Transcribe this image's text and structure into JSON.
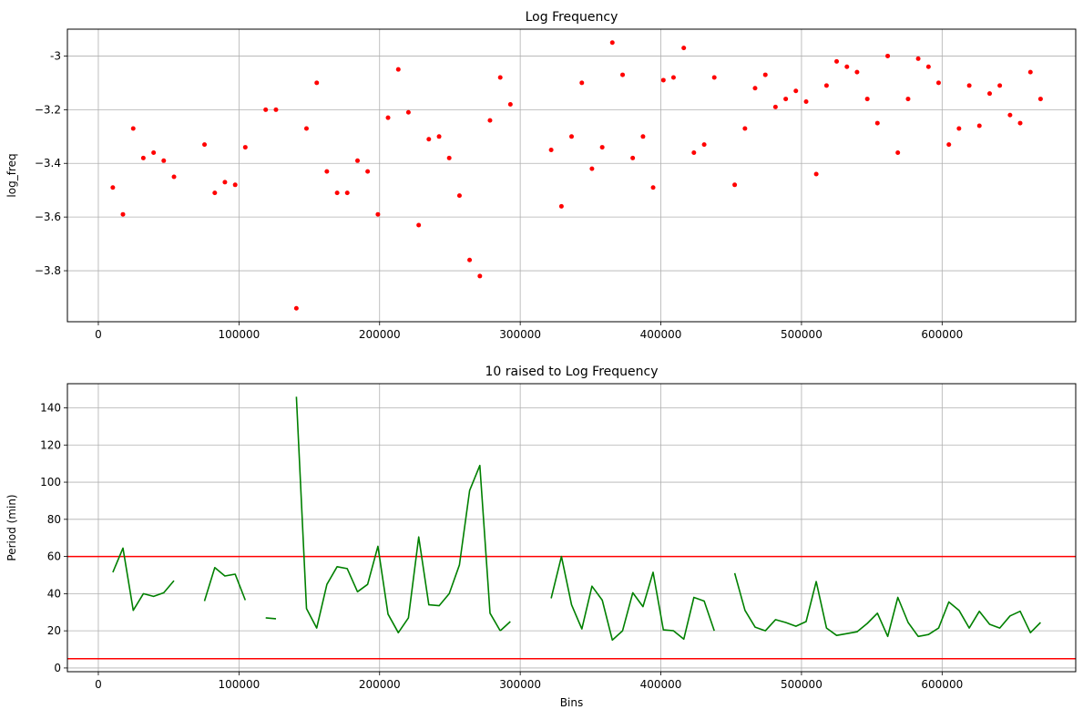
{
  "chart_data": [
    {
      "type": "scatter",
      "title": "Log Frequency",
      "xlabel": "",
      "ylabel": "log_freq",
      "xlim": [
        -22000,
        695000
      ],
      "ylim": [
        -3.99,
        -2.9
      ],
      "xticks": [
        0,
        100000,
        200000,
        300000,
        400000,
        500000,
        600000
      ],
      "yticks": [
        -3.8,
        -3.6,
        -3.4,
        -3.2,
        -3.0
      ],
      "grid": true,
      "color": "#ff0000",
      "series": [
        {
          "x": [
            10300,
            17500,
            24800,
            32000,
            39300,
            46500,
            53800,
            75500,
            82800,
            90000,
            97300,
            104500,
            119000,
            126300,
            140800,
            148000,
            155300,
            162500,
            169800,
            177000,
            184300,
            191500,
            198800,
            206000,
            213300,
            220500,
            227800,
            235000,
            242300,
            249500,
            256800,
            264000,
            271300,
            278500,
            285800,
            293000,
            322000,
            329300,
            336500,
            343800,
            351000,
            358300,
            365500,
            372800,
            380000,
            387300,
            394500,
            401800,
            409000,
            416300,
            423500,
            430800,
            438000,
            452500,
            459800,
            467000,
            474300,
            481500,
            488800,
            496000,
            503300,
            510500,
            517800,
            525000,
            532300,
            539500,
            546800,
            554000,
            561300,
            568500,
            575800,
            583000,
            590300,
            597500,
            604800,
            612000,
            619300,
            626500,
            633800,
            641000,
            648300,
            655500,
            662800,
            670000
          ],
          "y": [
            -3.49,
            -3.59,
            -3.27,
            -3.38,
            -3.36,
            -3.39,
            -3.45,
            -3.33,
            -3.51,
            -3.47,
            -3.48,
            -3.34,
            -3.2,
            -3.2,
            -3.94,
            -3.27,
            -3.1,
            -3.43,
            -3.51,
            -3.51,
            -3.39,
            -3.43,
            -3.59,
            -3.23,
            -3.05,
            -3.21,
            -3.63,
            -3.31,
            -3.3,
            -3.38,
            -3.52,
            -3.76,
            -3.82,
            -3.24,
            -3.08,
            -3.18,
            -3.35,
            -3.56,
            -3.3,
            -3.1,
            -3.42,
            -3.34,
            -2.95,
            -3.07,
            -3.38,
            -3.3,
            -3.49,
            -3.09,
            -3.08,
            -2.97,
            -3.36,
            -3.33,
            -3.08,
            -3.48,
            -3.27,
            -3.12,
            -3.07,
            -3.19,
            -3.16,
            -3.13,
            -3.17,
            -3.44,
            -3.11,
            -3.02,
            -3.04,
            -3.06,
            -3.16,
            -3.25,
            -3.0,
            -3.36,
            -3.16,
            -3.01,
            -3.04,
            -3.1,
            -3.33,
            -3.27,
            -3.11,
            -3.26,
            -3.14,
            -3.11,
            -3.22,
            -3.25,
            -3.06,
            -3.16
          ]
        }
      ]
    },
    {
      "type": "line",
      "title": "10 raised to Log Frequency",
      "xlabel": "Bins",
      "ylabel": "Period (min)",
      "xlim": [
        -22000,
        695000
      ],
      "ylim": [
        -2,
        153
      ],
      "xticks": [
        0,
        100000,
        200000,
        300000,
        400000,
        500000,
        600000
      ],
      "yticks": [
        0,
        20,
        40,
        60,
        80,
        100,
        120,
        140
      ],
      "grid": true,
      "color": "#008000",
      "hlines": [
        {
          "y": 60,
          "color": "#ff0000"
        },
        {
          "y": 5,
          "color": "#ff0000"
        }
      ],
      "segments": [
        {
          "x": [
            10300,
            17500,
            24800,
            32000,
            39300,
            46500,
            53800
          ],
          "y": [
            51.5,
            64.5,
            31,
            40,
            38.5,
            40.5,
            47
          ]
        },
        {
          "x": [
            75500,
            82800,
            90000,
            97300,
            104500
          ],
          "y": [
            36,
            54,
            49.5,
            50.5,
            36.5
          ]
        },
        {
          "x": [
            119000,
            126300
          ],
          "y": [
            27,
            26.5
          ]
        },
        {
          "x": [
            140800,
            148000,
            155300,
            162500,
            169800,
            177000,
            184300,
            191500,
            198800,
            206000,
            213300,
            220500,
            227800,
            235000,
            242300,
            249500,
            256800,
            264000,
            271300,
            278500,
            285800
          ],
          "y": [
            146,
            32,
            21.5,
            45,
            54.5,
            53.5,
            41,
            45,
            65.5,
            29,
            19,
            27,
            70.5,
            34,
            33.5,
            40,
            55.5,
            95.5,
            109,
            29.5,
            20
          ]
        },
        {
          "x": [
            285800,
            293000
          ],
          "y": [
            20,
            25
          ]
        },
        {
          "x": [
            322000,
            329300,
            336500,
            343800,
            351000,
            358300,
            365500,
            372800,
            380000,
            387300,
            394500,
            401800,
            409000,
            416300,
            423500,
            430800,
            438000
          ],
          "y": [
            37.5,
            60,
            34,
            21,
            44,
            36.5,
            15,
            20,
            40.5,
            33,
            51.5,
            20.5,
            20,
            15.5,
            38,
            36,
            20
          ]
        },
        {
          "x": [
            452500,
            459800,
            467000,
            474300,
            481500,
            488800,
            496000,
            503300,
            510500,
            517800,
            525000,
            532300,
            539500,
            546800,
            554000,
            561300,
            568500,
            575800,
            583000,
            590300,
            597500,
            604800,
            612000,
            619300,
            626500,
            633800,
            641000,
            648300,
            655500,
            662800,
            670000
          ],
          "y": [
            51,
            31,
            22,
            20,
            26,
            24.5,
            22.5,
            25,
            46.5,
            21.5,
            17.5,
            18.5,
            19.5,
            24,
            29.5,
            17,
            38,
            24.5,
            17,
            18,
            21.5,
            35.5,
            31,
            21.5,
            30.5,
            23.5,
            21.5,
            28,
            30.5,
            19,
            24.5
          ]
        }
      ]
    }
  ]
}
